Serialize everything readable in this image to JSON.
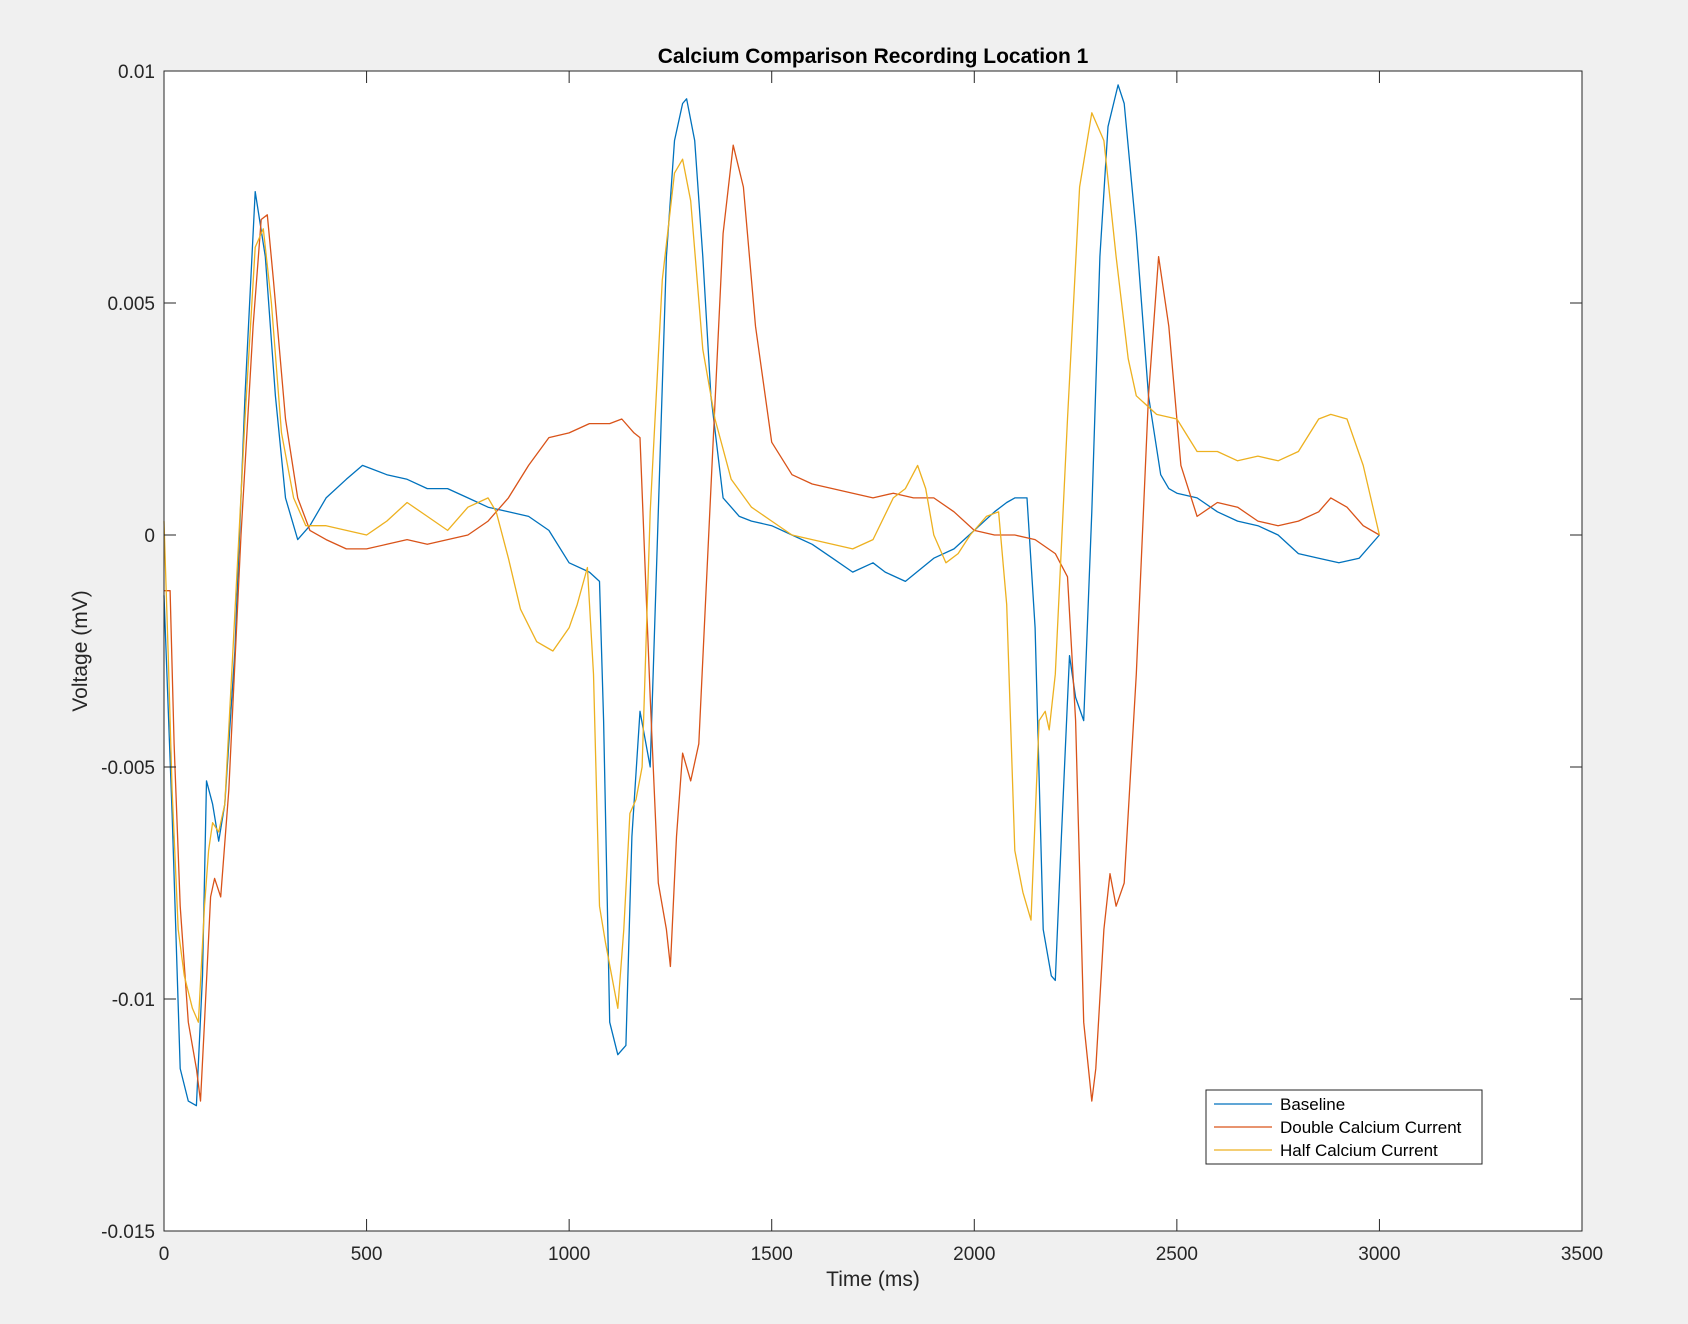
{
  "chart_data": {
    "type": "line",
    "title": "Calcium Comparison Recording Location 1",
    "xlabel": "Time (ms)",
    "ylabel": "Voltage (mV)",
    "xlim": [
      0,
      3500
    ],
    "ylim": [
      -0.015,
      0.01
    ],
    "xticks": [
      0,
      500,
      1000,
      1500,
      2000,
      2500,
      3000,
      3500
    ],
    "xtick_labels": [
      "0",
      "500",
      "1000",
      "1500",
      "2000",
      "2500",
      "3000",
      "3500"
    ],
    "yticks": [
      -0.015,
      -0.01,
      -0.005,
      0,
      0.005,
      0.01
    ],
    "ytick_labels": [
      "-0.015",
      "-0.01",
      "-0.005",
      "0",
      "0.005",
      "0.01"
    ],
    "grid": false,
    "legend_position": "bottom-right",
    "series": [
      {
        "name": "Baseline",
        "color": "#0072BD",
        "x": [
          0,
          20,
          40,
          60,
          80,
          95,
          105,
          120,
          135,
          150,
          175,
          200,
          225,
          250,
          275,
          300,
          330,
          360,
          400,
          450,
          490,
          550,
          600,
          650,
          700,
          750,
          800,
          850,
          900,
          950,
          1000,
          1050,
          1075,
          1085,
          1100,
          1120,
          1140,
          1155,
          1175,
          1200,
          1220,
          1240,
          1260,
          1280,
          1290,
          1310,
          1330,
          1350,
          1380,
          1420,
          1450,
          1500,
          1550,
          1600,
          1650,
          1700,
          1750,
          1780,
          1830,
          1900,
          1950,
          2000,
          2050,
          2080,
          2100,
          2130,
          2150,
          2170,
          2190,
          2200,
          2215,
          2235,
          2250,
          2270,
          2290,
          2310,
          2330,
          2355,
          2370,
          2400,
          2430,
          2460,
          2480,
          2500,
          2550,
          2600,
          2650,
          2700,
          2750,
          2800,
          2850,
          2900,
          2950,
          3000
        ],
        "y": [
          -0.0013,
          -0.006,
          -0.0115,
          -0.0122,
          -0.0123,
          -0.0095,
          -0.0053,
          -0.0058,
          -0.0066,
          -0.0058,
          -0.0025,
          0.003,
          0.0074,
          0.006,
          0.003,
          0.0008,
          -0.0001,
          0.0002,
          0.0008,
          0.0012,
          0.0015,
          0.0013,
          0.0012,
          0.001,
          0.001,
          0.0008,
          0.0006,
          0.0005,
          0.0004,
          0.0001,
          -0.0006,
          -0.0008,
          -0.001,
          -0.004,
          -0.0105,
          -0.0112,
          -0.011,
          -0.0065,
          -0.0038,
          -0.005,
          0.0005,
          0.006,
          0.0085,
          0.0093,
          0.0094,
          0.0085,
          0.006,
          0.003,
          0.0008,
          0.0004,
          0.0003,
          0.0002,
          0.0,
          -0.0002,
          -0.0005,
          -0.0008,
          -0.0006,
          -0.0008,
          -0.001,
          -0.0005,
          -0.0003,
          0.0001,
          0.0005,
          0.0007,
          0.0008,
          0.0008,
          -0.002,
          -0.0085,
          -0.0095,
          -0.0096,
          -0.0065,
          -0.0026,
          -0.0035,
          -0.004,
          0.0005,
          0.006,
          0.0088,
          0.0097,
          0.0093,
          0.0065,
          0.003,
          0.0013,
          0.001,
          0.0009,
          0.0008,
          0.0005,
          0.0003,
          0.0002,
          0.0,
          -0.0004,
          -0.0005,
          -0.0006,
          -0.0005,
          0.0
        ]
      },
      {
        "name": "Double Calcium Current",
        "color": "#D95319",
        "x": [
          0,
          15,
          25,
          40,
          60,
          80,
          90,
          100,
          115,
          125,
          140,
          160,
          190,
          220,
          240,
          255,
          270,
          300,
          330,
          360,
          400,
          450,
          500,
          550,
          600,
          650,
          700,
          750,
          800,
          850,
          900,
          950,
          1000,
          1050,
          1080,
          1100,
          1130,
          1160,
          1175,
          1200,
          1220,
          1240,
          1250,
          1265,
          1280,
          1300,
          1320,
          1350,
          1380,
          1405,
          1430,
          1460,
          1500,
          1550,
          1600,
          1650,
          1700,
          1750,
          1800,
          1850,
          1900,
          1950,
          2000,
          2050,
          2100,
          2150,
          2200,
          2230,
          2250,
          2270,
          2290,
          2300,
          2320,
          2335,
          2350,
          2370,
          2400,
          2430,
          2455,
          2480,
          2510,
          2550,
          2600,
          2650,
          2700,
          2750,
          2800,
          2850,
          2880,
          2920,
          2960,
          3000
        ],
        "y": [
          -0.0012,
          -0.0012,
          -0.0045,
          -0.008,
          -0.0105,
          -0.0115,
          -0.0122,
          -0.0105,
          -0.0078,
          -0.0074,
          -0.0078,
          -0.0055,
          0.0,
          0.0045,
          0.0068,
          0.0069,
          0.0055,
          0.0025,
          0.0008,
          0.0001,
          -0.0001,
          -0.0003,
          -0.0003,
          -0.0002,
          -0.0001,
          -0.0002,
          -0.0001,
          0.0,
          0.0003,
          0.0008,
          0.0015,
          0.0021,
          0.0022,
          0.0024,
          0.0024,
          0.0024,
          0.0025,
          0.0022,
          0.0021,
          -0.0035,
          -0.0075,
          -0.0085,
          -0.0093,
          -0.0065,
          -0.0047,
          -0.0053,
          -0.0045,
          0.001,
          0.0065,
          0.0084,
          0.0075,
          0.0045,
          0.002,
          0.0013,
          0.0011,
          0.001,
          0.0009,
          0.0008,
          0.0009,
          0.0008,
          0.0008,
          0.0005,
          0.0001,
          0.0,
          0.0,
          -0.0001,
          -0.0004,
          -0.0009,
          -0.004,
          -0.0105,
          -0.0122,
          -0.0115,
          -0.0085,
          -0.0073,
          -0.008,
          -0.0075,
          -0.003,
          0.003,
          0.006,
          0.0045,
          0.0015,
          0.0004,
          0.0007,
          0.0006,
          0.0003,
          0.0002,
          0.0003,
          0.0005,
          0.0008,
          0.0006,
          0.0002,
          0.0
        ]
      },
      {
        "name": "Half Calcium Current",
        "color": "#EDB120",
        "x": [
          0,
          10,
          20,
          35,
          50,
          70,
          85,
          100,
          110,
          120,
          135,
          150,
          170,
          200,
          225,
          245,
          265,
          290,
          320,
          350,
          400,
          450,
          500,
          550,
          600,
          650,
          700,
          750,
          800,
          820,
          850,
          880,
          920,
          960,
          1000,
          1020,
          1045,
          1060,
          1075,
          1090,
          1105,
          1120,
          1135,
          1150,
          1165,
          1180,
          1200,
          1230,
          1260,
          1280,
          1300,
          1330,
          1360,
          1400,
          1450,
          1500,
          1550,
          1600,
          1650,
          1700,
          1750,
          1800,
          1830,
          1860,
          1880,
          1900,
          1930,
          1960,
          1990,
          2030,
          2060,
          2080,
          2100,
          2120,
          2140,
          2160,
          2175,
          2185,
          2200,
          2230,
          2260,
          2290,
          2320,
          2350,
          2380,
          2400,
          2450,
          2500,
          2550,
          2600,
          2650,
          2700,
          2750,
          2800,
          2850,
          2880,
          2920,
          2960,
          3000
        ],
        "y": [
          0.0003,
          -0.0025,
          -0.0055,
          -0.0085,
          -0.0095,
          -0.0102,
          -0.0105,
          -0.008,
          -0.0068,
          -0.0062,
          -0.0064,
          -0.0058,
          -0.0025,
          0.0025,
          0.0062,
          0.0066,
          0.005,
          0.0022,
          0.0008,
          0.0002,
          0.0002,
          0.0001,
          0.0,
          0.0003,
          0.0007,
          0.0004,
          0.0001,
          0.0006,
          0.0008,
          0.0005,
          -0.0005,
          -0.0016,
          -0.0023,
          -0.0025,
          -0.002,
          -0.0015,
          -0.0007,
          -0.003,
          -0.008,
          -0.0088,
          -0.0095,
          -0.0102,
          -0.0085,
          -0.006,
          -0.0057,
          -0.005,
          0.0005,
          0.0055,
          0.0078,
          0.0081,
          0.0072,
          0.004,
          0.0025,
          0.0012,
          0.0006,
          0.0003,
          0.0,
          -0.0001,
          -0.0002,
          -0.0003,
          -0.0001,
          0.0008,
          0.001,
          0.0015,
          0.001,
          0.0,
          -0.0006,
          -0.0004,
          0.0,
          0.0004,
          0.0005,
          -0.0015,
          -0.0068,
          -0.0077,
          -0.0083,
          -0.004,
          -0.0038,
          -0.0042,
          -0.003,
          0.0025,
          0.0075,
          0.0091,
          0.0085,
          0.006,
          0.0038,
          0.003,
          0.0026,
          0.0025,
          0.0018,
          0.0018,
          0.0016,
          0.0017,
          0.0016,
          0.0018,
          0.0025,
          0.0026,
          0.0025,
          0.0015,
          0.0
        ]
      }
    ]
  }
}
